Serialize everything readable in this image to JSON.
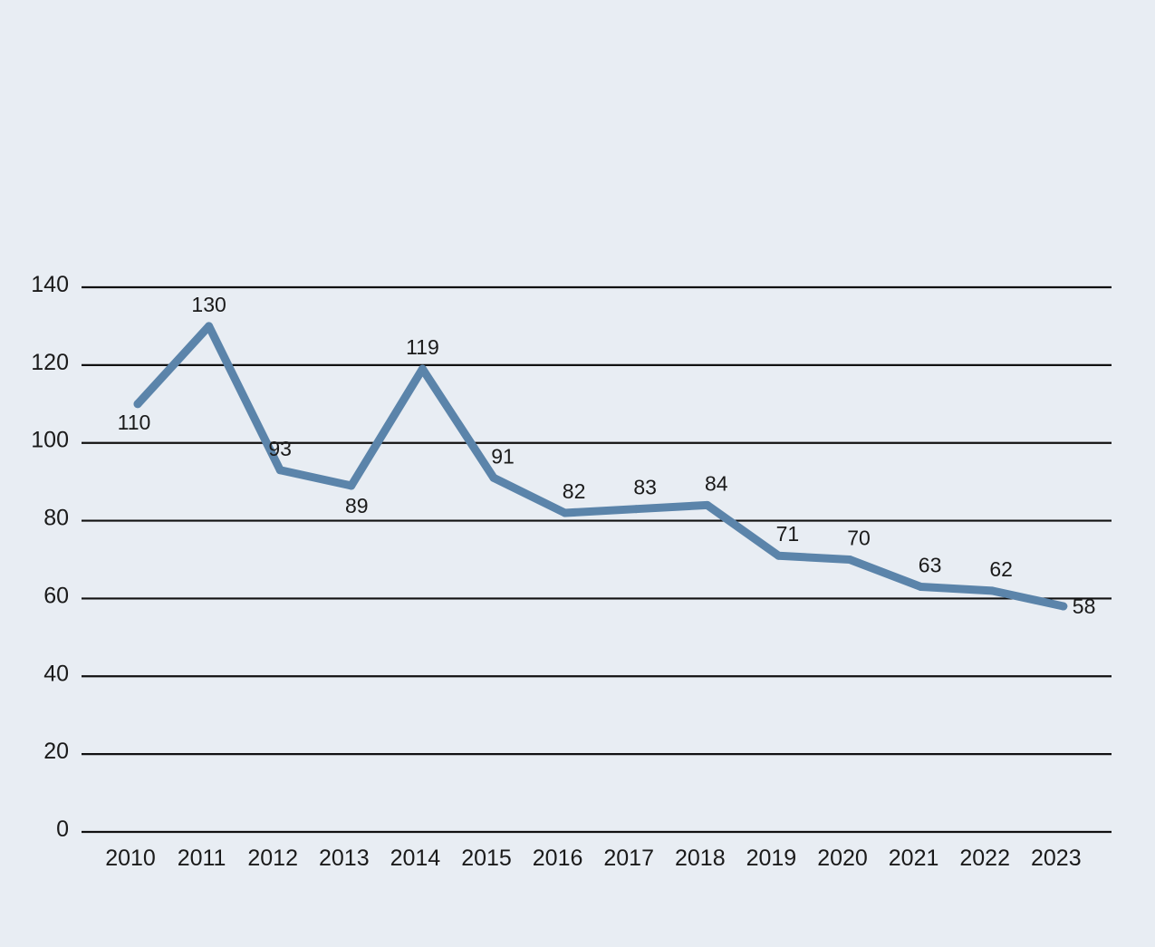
{
  "chart_data": {
    "type": "line",
    "title": "",
    "xlabel": "",
    "ylabel": "",
    "x": [
      "2010",
      "2011",
      "2012",
      "2013",
      "2014",
      "2015",
      "2016",
      "2017",
      "2018",
      "2019",
      "2020",
      "2021",
      "2022",
      "2023"
    ],
    "series": [
      {
        "values": [
          110,
          130,
          93,
          89,
          119,
          91,
          82,
          83,
          84,
          71,
          70,
          63,
          62,
          58
        ],
        "color": "#5b84aa"
      }
    ],
    "ylim": [
      0,
      140
    ],
    "yticks": [
      0,
      20,
      40,
      60,
      80,
      100,
      120,
      140
    ],
    "grid": true,
    "legend": "none",
    "data_labels": true
  }
}
